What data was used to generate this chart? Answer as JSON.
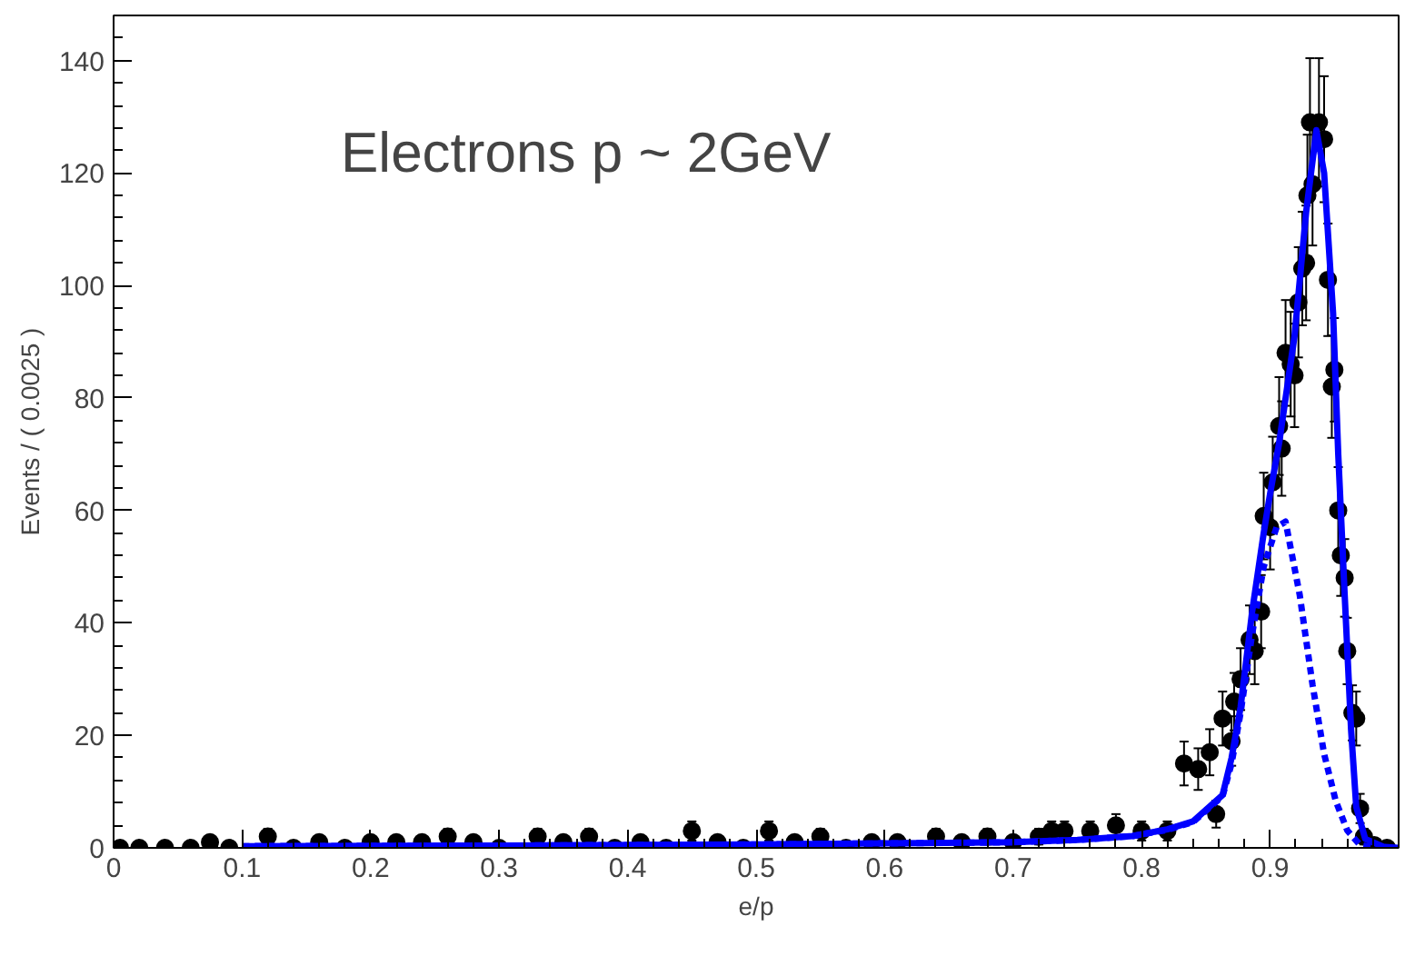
{
  "chart_data": {
    "type": "scatter",
    "xlabel": "e/p",
    "ylabel": "Events / ( 0.0025 )",
    "annotations": [
      "Electrons p ~ 2GeV"
    ],
    "xlim": [
      0,
      1.0
    ],
    "ylim": [
      0,
      148
    ],
    "xticks": [
      0,
      0.1,
      0.2,
      0.3,
      0.4,
      0.5,
      0.6,
      0.7,
      0.8,
      0.9
    ],
    "yticks": [
      0,
      20,
      40,
      60,
      80,
      100,
      120,
      140
    ],
    "grid": false,
    "marker": "circle",
    "series": [
      {
        "color": "#000000",
        "x": [
          0.005,
          0.02,
          0.04,
          0.06,
          0.075,
          0.09,
          0.12,
          0.14,
          0.16,
          0.18,
          0.2,
          0.22,
          0.24,
          0.26,
          0.28,
          0.3,
          0.33,
          0.35,
          0.37,
          0.39,
          0.41,
          0.43,
          0.45,
          0.47,
          0.49,
          0.51,
          0.53,
          0.55,
          0.57,
          0.59,
          0.61,
          0.64,
          0.66,
          0.68,
          0.7,
          0.72,
          0.73,
          0.74,
          0.76,
          0.78,
          0.8,
          0.82,
          0.833,
          0.844,
          0.853,
          0.858,
          0.863,
          0.87,
          0.872,
          0.877,
          0.884,
          0.888,
          0.893,
          0.895,
          0.9,
          0.902,
          0.907,
          0.909,
          0.912,
          0.916,
          0.919,
          0.922,
          0.925,
          0.928,
          0.929,
          0.931,
          0.933,
          0.938,
          0.942,
          0.945,
          0.948,
          0.95,
          0.953,
          0.955,
          0.958,
          0.96,
          0.964,
          0.967,
          0.97,
          0.973,
          0.981,
          0.991
        ],
        "values": [
          0,
          0,
          0,
          0,
          1,
          0,
          2,
          0,
          1,
          0,
          1,
          1,
          1,
          2,
          1,
          0,
          2,
          1,
          2,
          0,
          1,
          0,
          3,
          1,
          0,
          3,
          1,
          2,
          0,
          1,
          1,
          2,
          1,
          2,
          1,
          2,
          3,
          3,
          3,
          4,
          3,
          3,
          15,
          14,
          17,
          6,
          23,
          19,
          26,
          30,
          37,
          35,
          42,
          59,
          57,
          65,
          75,
          71,
          88,
          86,
          84,
          97,
          103,
          104,
          116,
          129,
          118,
          129,
          126,
          101,
          82,
          85,
          60,
          52,
          48,
          35,
          24,
          23,
          7,
          2,
          0.5,
          0
        ],
        "errors": [
          null,
          null,
          null,
          null,
          1,
          null,
          1.4,
          null,
          1,
          null,
          1,
          1,
          1,
          1.4,
          1,
          null,
          1.4,
          1,
          1.4,
          null,
          1,
          null,
          1.7,
          1,
          null,
          1.7,
          1,
          1.4,
          null,
          1,
          1,
          1.4,
          1,
          1.4,
          1,
          1.4,
          1.7,
          1.7,
          1.7,
          2,
          1.7,
          1.7,
          3.9,
          3.7,
          4.1,
          2.4,
          4.8,
          4.4,
          5.1,
          5.5,
          6.1,
          5.9,
          6.5,
          7.7,
          7.5,
          8.1,
          8.7,
          8.4,
          9.4,
          9.3,
          9.2,
          9.8,
          10.1,
          10.2,
          10.8,
          11.4,
          10.9,
          11.4,
          11.2,
          10,
          9.1,
          9.2,
          7.7,
          7.2,
          6.9,
          5.9,
          4.9,
          4.8,
          2.6,
          1.4,
          0.7,
          null
        ]
      },
      {
        "type": "line",
        "marker": "none",
        "color": "#0000ff",
        "line_style": "solid",
        "x": [
          0.1,
          0.3,
          0.5,
          0.6,
          0.7,
          0.75,
          0.793,
          0.82,
          0.84,
          0.863,
          0.87,
          0.877,
          0.886,
          0.895,
          0.9,
          0.907,
          0.919,
          0.928,
          0.936,
          0.942,
          0.949,
          0.953,
          0.958,
          0.963,
          0.967,
          0.974,
          0.988,
          1.0
        ],
        "values": [
          0.3,
          0.4,
          0.6,
          0.8,
          1.0,
          1.4,
          2.1,
          3.3,
          4.7,
          9.4,
          16,
          25,
          42,
          56,
          63,
          72,
          91,
          113,
          127.6,
          120,
          95,
          70,
          45,
          21,
          7.3,
          1.6,
          0.2,
          0
        ]
      },
      {
        "type": "line",
        "marker": "none",
        "color": "#0000ff",
        "line_style": "dashed",
        "x": [
          0.1,
          0.3,
          0.5,
          0.6,
          0.7,
          0.75,
          0.793,
          0.82,
          0.84,
          0.863,
          0.87,
          0.877,
          0.886,
          0.895,
          0.905,
          0.912,
          0.923,
          0.933,
          0.942,
          0.951,
          0.96,
          0.97,
          0.98
        ],
        "values": [
          0.3,
          0.4,
          0.6,
          0.8,
          1.0,
          1.4,
          2.1,
          3.2,
          4.6,
          9.2,
          15,
          24,
          38,
          50,
          57,
          58,
          45,
          29,
          16.7,
          8.4,
          3.1,
          0.5,
          0.1
        ]
      }
    ]
  }
}
